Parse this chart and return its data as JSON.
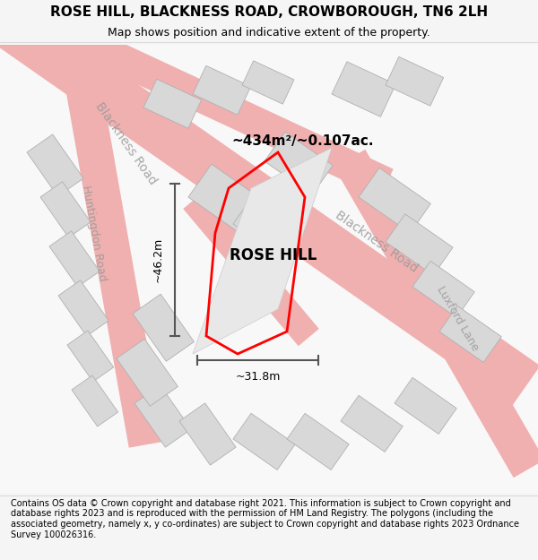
{
  "title": "ROSE HILL, BLACKNESS ROAD, CROWBOROUGH, TN6 2LH",
  "subtitle": "Map shows position and indicative extent of the property.",
  "footer": "Contains OS data © Crown copyright and database right 2021. This information is subject to Crown copyright and database rights 2023 and is reproduced with the permission of HM Land Registry. The polygons (including the associated geometry, namely x, y co-ordinates) are subject to Crown copyright and database rights 2023 Ordnance Survey 100026316.",
  "area_label": "~434m²/~0.107ac.",
  "property_label": "ROSE HILL",
  "dim_h": "~46.2m",
  "dim_w": "~31.8m",
  "bg_color": "#f5f5f5",
  "map_bg": "#ffffff",
  "road_color": "#f0b0b0",
  "building_color": "#d8d8d8",
  "building_edge": "#b0b0b0",
  "highlight_color": "#e8e8e8",
  "red_outline": "#ff0000",
  "dim_color": "#555555",
  "road_label_color": "#999999",
  "road_label_size": 10,
  "title_size": 11,
  "subtitle_size": 9,
  "footer_size": 7
}
